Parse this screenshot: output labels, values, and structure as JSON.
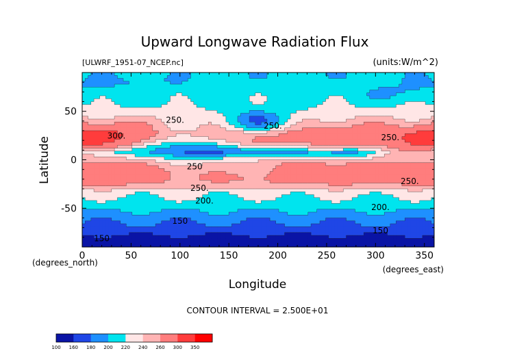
{
  "chart_data": {
    "type": "heatmap",
    "title": "Upward Longwave Radiation Flux",
    "subtitle_left": "[ULWRF_1951-07_NCEP.nc]",
    "subtitle_right": "(units:W/m^2)",
    "xlabel": "Longitude",
    "ylabel": "Latitude",
    "x_units": "(degrees_east)",
    "y_units": "(degrees_north)",
    "xlim": [
      0,
      360
    ],
    "ylim": [
      -90,
      90
    ],
    "x_ticks": [
      0,
      50,
      100,
      150,
      200,
      250,
      300,
      350
    ],
    "y_ticks": [
      -50,
      0,
      50
    ],
    "contour_interval_text": "CONTOUR INTERVAL = 2.500E+01",
    "colorbar_levels": [
      100,
      160,
      180,
      200,
      220,
      240,
      260,
      300,
      350
    ],
    "colorbar_colors": [
      "#0a14a5",
      "#1f46e6",
      "#1e90ff",
      "#00e4ee",
      "#ffe6e6",
      "#ffb4b4",
      "#ff7d7d",
      "#ff3c3c",
      "#ff0000"
    ],
    "contour_labels": [
      {
        "text": "300.",
        "lon": 35,
        "lat": 22
      },
      {
        "text": "250.",
        "lon": 95,
        "lat": 38
      },
      {
        "text": "250.",
        "lon": 195,
        "lat": 32
      },
      {
        "text": "250.",
        "lon": 315,
        "lat": 20
      },
      {
        "text": "250",
        "lon": 115,
        "lat": -10
      },
      {
        "text": "250.",
        "lon": 120,
        "lat": -32
      },
      {
        "text": "250.",
        "lon": 335,
        "lat": -25
      },
      {
        "text": "200.",
        "lon": 125,
        "lat": -45
      },
      {
        "text": "200.",
        "lon": 305,
        "lat": -52
      },
      {
        "text": "150",
        "lon": 100,
        "lat": -66
      },
      {
        "text": "150",
        "lon": 20,
        "lat": -84
      },
      {
        "text": "150",
        "lon": 305,
        "lat": -76
      }
    ]
  }
}
